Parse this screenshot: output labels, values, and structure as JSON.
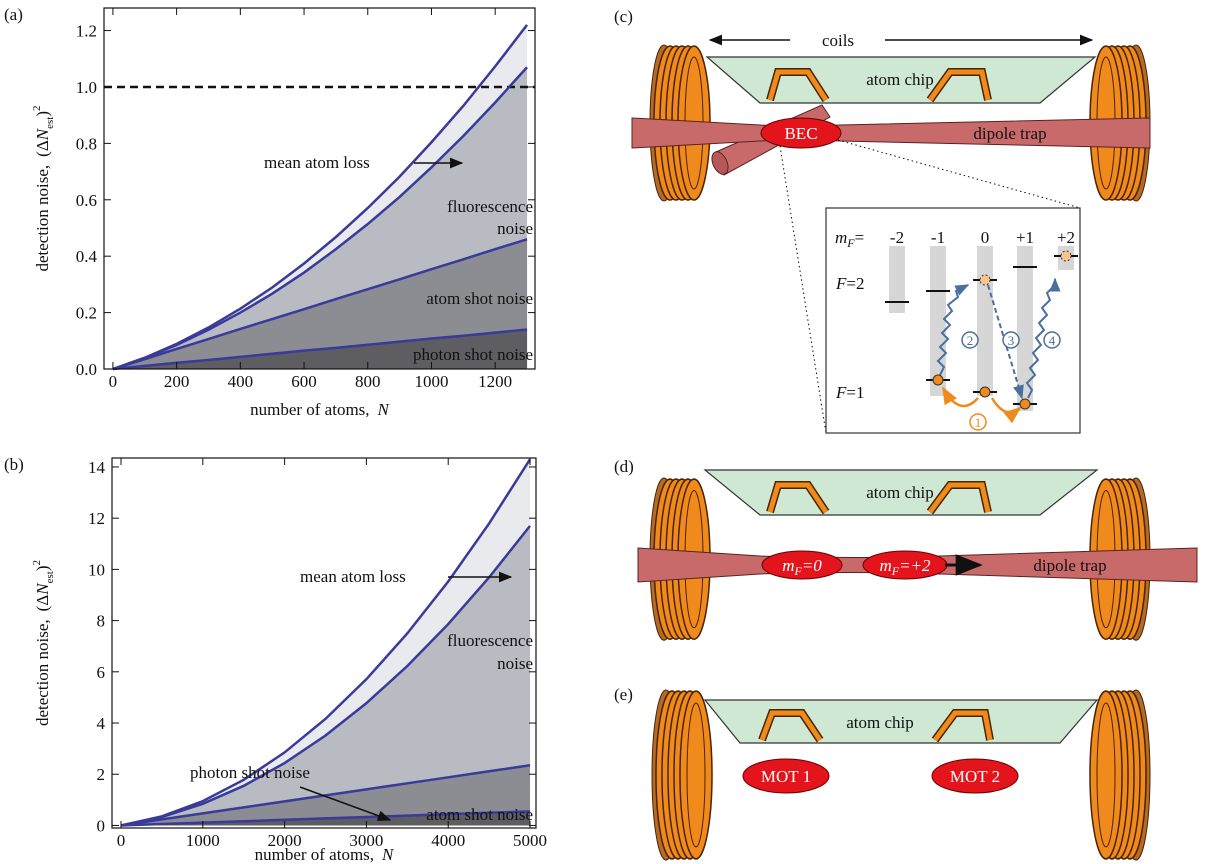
{
  "chart_data": [
    {
      "type": "area",
      "panel": "(a)",
      "x": [
        0,
        100,
        200,
        300,
        400,
        500,
        600,
        700,
        800,
        900,
        1000,
        1100,
        1200,
        1300
      ],
      "series": [
        {
          "color": "#3a3a9a",
          "fill": "#5d5d62",
          "values": [
            0,
            0.011,
            0.022,
            0.032,
            0.043,
            0.054,
            0.065,
            0.075,
            0.086,
            0.097,
            0.108,
            0.118,
            0.129,
            0.14
          ]
        },
        {
          "color": "#3a3a9a",
          "fill": "#8c8d93",
          "values": [
            0,
            0.035,
            0.071,
            0.106,
            0.142,
            0.177,
            0.212,
            0.248,
            0.283,
            0.318,
            0.354,
            0.389,
            0.425,
            0.46
          ]
        },
        {
          "color": "#3a3a9a",
          "fill": "#b9bbc2",
          "values": [
            0,
            0.039,
            0.085,
            0.139,
            0.2,
            0.267,
            0.342,
            0.425,
            0.514,
            0.61,
            0.715,
            0.826,
            0.945,
            1.07
          ]
        },
        {
          "color": "#3a3a9a",
          "fill": "#e9eaee",
          "values": [
            0,
            0.04,
            0.089,
            0.147,
            0.214,
            0.289,
            0.374,
            0.468,
            0.571,
            0.682,
            0.804,
            0.933,
            1.073,
            1.22
          ]
        }
      ],
      "xlim": [
        -28,
        1325
      ],
      "ylim": [
        0,
        1.28
      ],
      "xticks": [
        0,
        200,
        400,
        600,
        800,
        1000,
        1200
      ],
      "yticks": [
        {
          "value": 0,
          "label": "0.0"
        },
        0.2,
        0.4,
        0.6,
        0.8,
        {
          "value": 1,
          "label": "1.0"
        },
        1.2
      ],
      "reference_line": 1,
      "xlabel": {
        "text": "number of atoms,",
        "var": "N"
      },
      "ylabel": {
        "text": "detection noise,",
        "open": "(Δ",
        "var": "N",
        "sub": "est",
        "close": ")",
        "sup": "2"
      },
      "annotations": [
        "mean atom loss",
        "fluorescence",
        "noise",
        "atom shot noise",
        "photon shot noise"
      ]
    },
    {
      "type": "area",
      "panel": "(b)",
      "x": [
        0,
        500,
        1000,
        1500,
        2000,
        2500,
        3000,
        3500,
        4000,
        4500,
        5000
      ],
      "series": [
        {
          "color": "#3a3a9a",
          "fill": "#5d5d62",
          "values": [
            0,
            0.055,
            0.11,
            0.165,
            0.22,
            0.275,
            0.33,
            0.385,
            0.44,
            0.495,
            0.55
          ]
        },
        {
          "color": "#3a3a9a",
          "fill": "#8c8d93",
          "values": [
            0,
            0.235,
            0.47,
            0.705,
            0.94,
            1.175,
            1.41,
            1.645,
            1.88,
            2.115,
            2.35
          ]
        },
        {
          "color": "#3a3a9a",
          "fill": "#b9bbc2",
          "values": [
            0,
            0.329,
            0.844,
            1.547,
            2.436,
            3.513,
            4.776,
            6.227,
            7.864,
            9.689,
            11.7
          ]
        },
        {
          "color": "#3a3a9a",
          "fill": "#e9eaee",
          "values": [
            0,
            0.355,
            0.948,
            1.781,
            2.852,
            4.163,
            5.712,
            7.501,
            9.528,
            11.795,
            14.3
          ]
        }
      ],
      "xlim": [
        -110,
        5073
      ],
      "ylim": [
        -0.1,
        14.35
      ],
      "xticks": [
        0,
        1000,
        2000,
        3000,
        4000,
        5000
      ],
      "yticks": [
        0,
        2,
        4,
        6,
        8,
        10,
        12,
        14
      ],
      "xlabel": {
        "text": "number of atoms,",
        "var": "N"
      },
      "ylabel": {
        "text": "detection noise,",
        "open": "(Δ",
        "var": "N",
        "sub": "est",
        "close": ")",
        "sup": "2"
      },
      "annotations": [
        "mean atom loss",
        "fluorescence",
        "noise",
        "atom shot noise",
        "photon shot noise"
      ]
    }
  ],
  "diagrams": {
    "c": {
      "panel": "(c)",
      "coils": "coils",
      "chip": "atom chip",
      "bec": "BEC",
      "trap": "dipole trap",
      "inset": {
        "m": "m",
        "sub": "F",
        "eq": "=",
        "levels": [
          "-2",
          "-1",
          "0",
          "+1",
          "+2"
        ],
        "f2": {
          "f": "F",
          "rest": "=2"
        },
        "f1": {
          "f": "F",
          "rest": "=1"
        },
        "steps": [
          "1",
          "2",
          "3",
          "4"
        ]
      }
    },
    "d": {
      "panel": "(d)",
      "chip": "atom chip",
      "trap": "dipole trap",
      "cloud1": {
        "m": "m",
        "sub": "F",
        "rest": "=0"
      },
      "cloud2": {
        "m": "m",
        "sub": "F",
        "rest": "=+2"
      }
    },
    "e": {
      "panel": "(e)",
      "chip": "atom chip",
      "mot1": "MOT 1",
      "mot2": "MOT 2"
    }
  }
}
